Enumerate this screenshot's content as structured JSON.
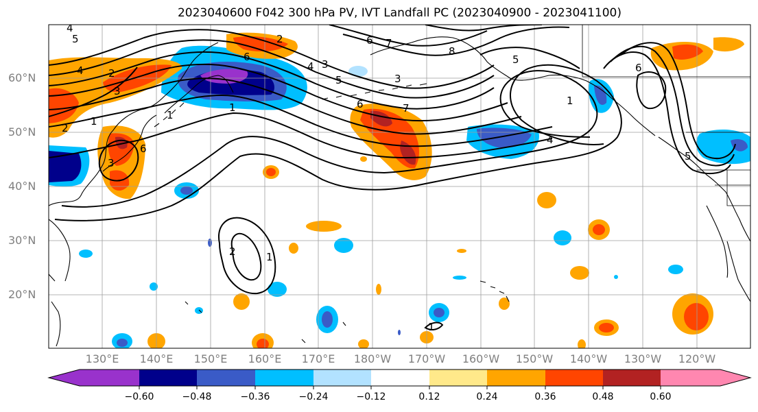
{
  "title": "2023040600 F042 300 hPa PV, IVT Landfall PC (2023040900 - 2023041100)",
  "lat_labels": [
    "60°N",
    "50°N",
    "40°N",
    "30°N",
    "20°N"
  ],
  "lon_labels": [
    "130°E",
    "140°E",
    "150°E",
    "160°E",
    "170°E",
    "180°W",
    "170°W",
    "160°W",
    "150°W",
    "140°W",
    "130°W",
    "120°W"
  ],
  "colorbar": {
    "ticks": [
      "−0.60",
      "−0.48",
      "−0.36",
      "−0.24",
      "−0.12",
      "0.12",
      "0.24",
      "0.36",
      "0.48",
      "0.60"
    ],
    "colors": [
      "#9932cc",
      "#00008b",
      "#3a5bc7",
      "#00bfff",
      "#b2e2ff",
      "#ffffff",
      "#ffe98a",
      "#ffa500",
      "#ff4500",
      "#b22222",
      "#ff87b0"
    ]
  },
  "contour_labels": [
    "4",
    "5",
    "4",
    "2",
    "3",
    "1",
    "2",
    "3",
    "6",
    "1",
    "6",
    "4",
    "5",
    "6",
    "7",
    "8",
    "5",
    "1",
    "4",
    "6",
    "7",
    "3",
    "2",
    "1",
    "5",
    "6",
    "3",
    "1",
    "2",
    "1"
  ]
}
